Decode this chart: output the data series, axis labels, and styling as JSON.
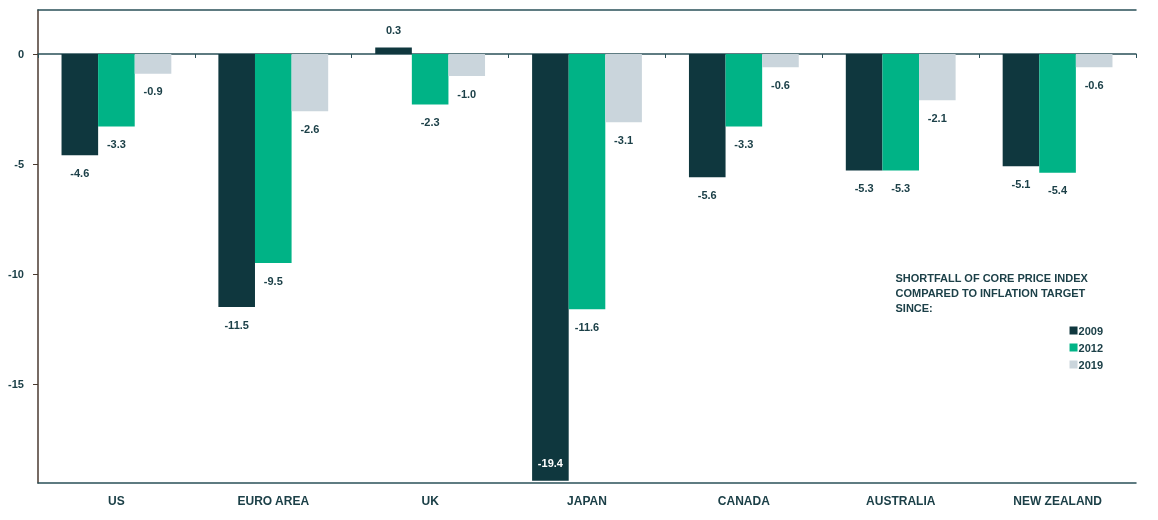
{
  "chart_data": {
    "type": "bar",
    "categories": [
      "US",
      "EURO AREA",
      "UK",
      "JAPAN",
      "CANADA",
      "AUSTRALIA",
      "NEW ZEALAND"
    ],
    "legend_title": "SHORTFALL OF CORE PRICE INDEX\nCOMPARED TO INFLATION TARGET\nSINCE:",
    "series": [
      {
        "name": "2009",
        "color": "#0f373e",
        "values": [
          -4.6,
          -11.5,
          0.3,
          -19.4,
          -5.6,
          -5.3,
          -5.1
        ]
      },
      {
        "name": "2012",
        "color": "#00b386",
        "values": [
          -3.3,
          -9.5,
          -2.3,
          -11.6,
          -3.3,
          -5.3,
          -5.4
        ]
      },
      {
        "name": "2019",
        "color": "#cad5dc",
        "values": [
          -0.9,
          -2.6,
          -1.0,
          -3.1,
          -0.6,
          -2.1,
          -0.6
        ],
        "value_labels": [
          "-0.9",
          "-2.6",
          "-1.0",
          "-3.1",
          "-0.6",
          "-2.1",
          "-0.6"
        ]
      }
    ],
    "ylim": [
      -19.5,
      2
    ],
    "yticks": [
      0,
      -5,
      -10,
      -15
    ],
    "grid": false,
    "legend": "right",
    "data_labels": true
  }
}
